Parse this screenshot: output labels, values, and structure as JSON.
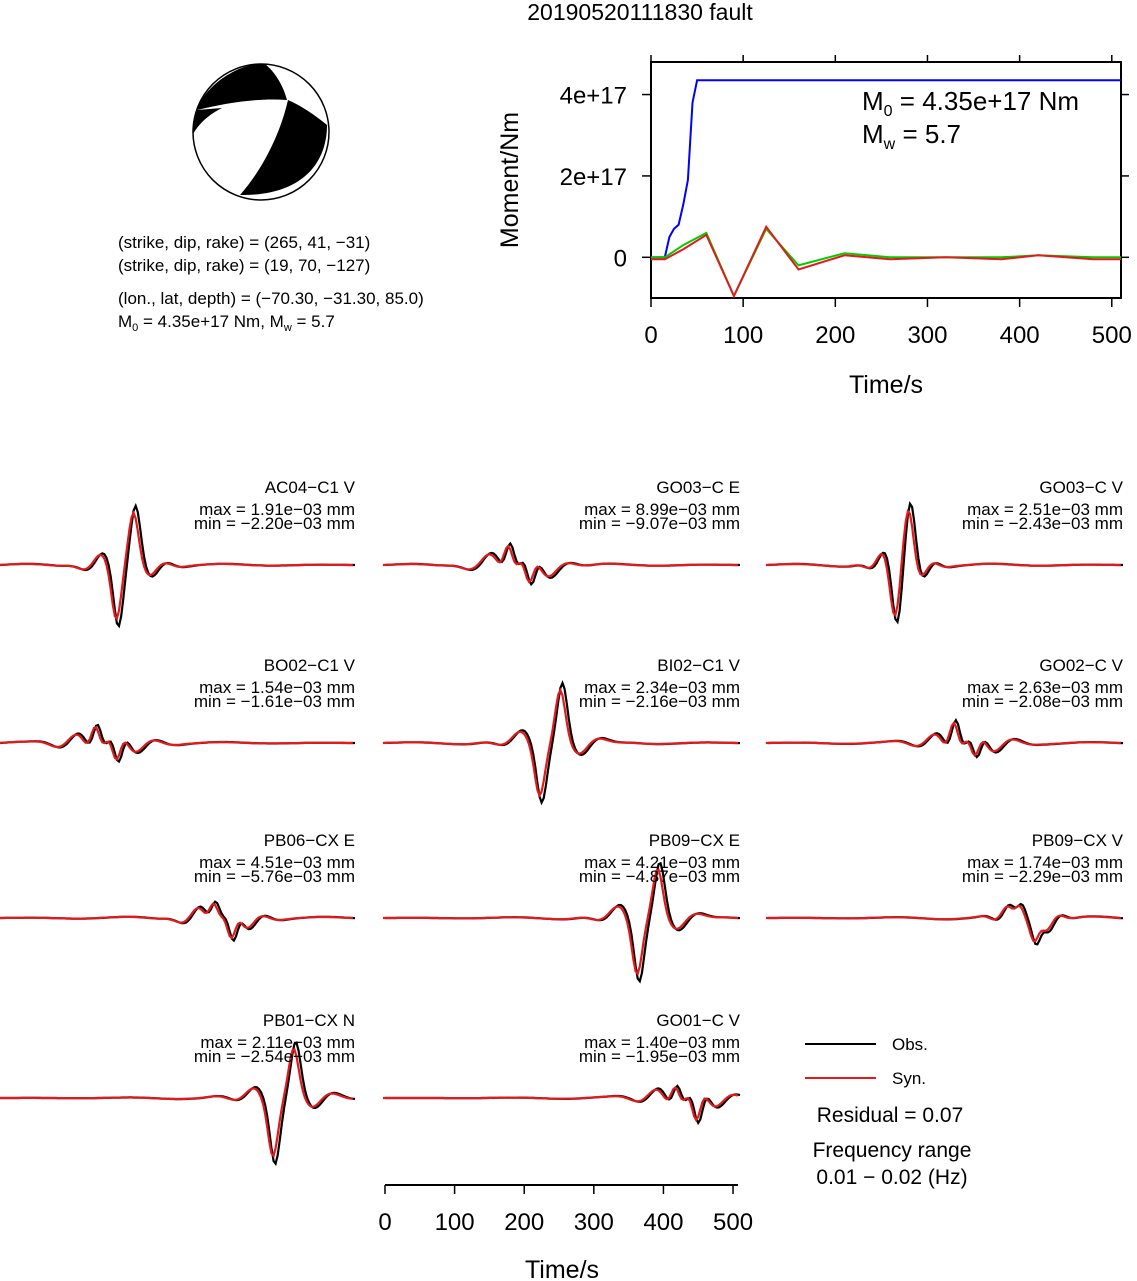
{
  "figure": {
    "title": "20190520111830 fault"
  },
  "mechanism": {
    "text_lines": [
      "(strike, dip, rake) = (265, 41, −31)",
      "(strike, dip, rake) = (19, 70, −127)",
      "(lon., lat, depth) = (−70.30, −31.30, 85.0)"
    ],
    "m0_prefix": "M",
    "m0_sub": "0",
    "m0_rest": " = 4.35e+17 Nm, M",
    "mw_sub": "w",
    "mw_rest": " = 5.7",
    "colors": {
      "compression": "#000000",
      "dilatation": "#ffffff"
    }
  },
  "moment_plot": {
    "ylabel": "Moment/Nm",
    "xlabel": "Time/s",
    "m0_label_prefix": "M",
    "m0_label_sub": "0",
    "m0_label_rest": " = 4.35e+17 Nm",
    "mw_label_prefix": "M",
    "mw_label_sub": "w",
    "mw_label_rest": " = 5.7"
  },
  "legend": {
    "obs": "Obs.",
    "syn": "Syn.",
    "obs_color": "#000000",
    "syn_color": "#e31a1c"
  },
  "residual_text": "Residual = 0.07",
  "frequency_title": "Frequency range",
  "frequency_value": "0.01 − 0.02 (Hz)",
  "waveform_axis": {
    "xlabel": "Time/s",
    "ticks": [
      "0",
      "100",
      "200",
      "300",
      "400",
      "500"
    ]
  },
  "chart_data": [
    {
      "type": "line",
      "xlabel": "Time/s",
      "ylabel": "Moment/Nm",
      "xlim": [
        0,
        510
      ],
      "ylim": [
        -1e+17,
        4.8e+17
      ],
      "x_ticks": [
        0,
        100,
        200,
        300,
        400,
        500
      ],
      "y_ticks": [
        0,
        2e+17,
        4e+17
      ],
      "y_tick_labels": [
        "0",
        "2e+17",
        "4e+17"
      ],
      "series": [
        {
          "color": "#0000ff",
          "x": [
            0,
            15,
            20,
            25,
            30,
            35,
            40,
            45,
            50,
            510
          ],
          "values": [
            0,
            0,
            5e+16,
            7e+16,
            8e+16,
            1.3e+17,
            1.9e+17,
            3.8e+17,
            4.35e+17,
            4.35e+17
          ]
        },
        {
          "color": "#00cc00",
          "x": [
            0,
            15,
            35,
            60,
            90,
            125,
            160,
            210,
            260,
            320,
            380,
            420,
            480,
            510
          ],
          "values": [
            0,
            0,
            3e+16,
            6e+16,
            -9.5e+16,
            7e+16,
            -2e+16,
            1e+16,
            0,
            0,
            0,
            5000000000000000.0,
            0,
            0
          ]
        },
        {
          "color": "#e31a1c",
          "x": [
            0,
            15,
            35,
            60,
            90,
            125,
            160,
            210,
            260,
            320,
            380,
            420,
            480,
            510
          ],
          "values": [
            -5000000000000000.0,
            -5000000000000000.0,
            2e+16,
            5.5e+16,
            -9.5e+16,
            7.5e+16,
            -3e+16,
            5000000000000000.0,
            -5000000000000000.0,
            0,
            -5000000000000000.0,
            5000000000000000.0,
            -5000000000000000.0,
            -5000000000000000.0
          ]
        }
      ],
      "grid": false,
      "legend_position": "top-right"
    },
    {
      "type": "line",
      "xlabel": "Time/s",
      "xlim": [
        0,
        510
      ],
      "x_ticks": [
        0,
        100,
        200,
        300,
        400,
        500
      ],
      "stations": [
        {
          "name": "AC04−C1 V",
          "max": "max = 1.91e−03 mm",
          "min": "min = −2.20e−03 mm",
          "obs_peak_x": 195,
          "obs_peak": 0.00191,
          "obs_trough_x": 170,
          "obs_trough": -0.0022
        },
        {
          "name": "GO03−C E",
          "max": "max = 8.99e−03 mm",
          "min": "min = −9.07e−03 mm",
          "obs_peak_x": 180,
          "obs_peak": 0.00899,
          "obs_trough_x": 210,
          "obs_trough": -0.00907
        },
        {
          "name": "GO03−C V",
          "max": "max = 2.51e−03 mm",
          "min": "min = −2.43e−03 mm",
          "obs_peak_x": 205,
          "obs_peak": 0.00251,
          "obs_trough_x": 185,
          "obs_trough": -0.00243
        },
        {
          "name": "BO02−C1 V",
          "max": "max = 1.54e−03 mm",
          "min": "min = −1.61e−03 mm",
          "obs_peak_x": 140,
          "obs_peak": 0.00154,
          "obs_trough_x": 170,
          "obs_trough": -0.00161
        },
        {
          "name": "BI02−C1 V",
          "max": "max = 2.34e−03 mm",
          "min": "min = −2.16e−03 mm",
          "obs_peak_x": 255,
          "obs_peak": 0.00234,
          "obs_trough_x": 225,
          "obs_trough": -0.00216
        },
        {
          "name": "GO02−C V",
          "max": "max = 2.63e−03 mm",
          "min": "min = −2.08e−03 mm",
          "obs_peak_x": 270,
          "obs_peak": 0.00263,
          "obs_trough_x": 300,
          "obs_trough": -0.00208
        },
        {
          "name": "PB06−CX E",
          "max": "max = 4.51e−03 mm",
          "min": "min = −5.76e−03 mm",
          "obs_peak_x": 310,
          "obs_peak": 0.00451,
          "obs_trough_x": 335,
          "obs_trough": -0.00576
        },
        {
          "name": "PB09−CX E",
          "max": "max = 4.21e−03 mm",
          "min": "min = −4.87e−03 mm",
          "obs_peak_x": 395,
          "obs_peak": 0.00421,
          "obs_trough_x": 365,
          "obs_trough": -0.00487
        },
        {
          "name": "PB09−CX V",
          "max": "max = 1.74e−03 mm",
          "min": "min = −2.29e−03 mm",
          "obs_peak_x": 365,
          "obs_peak": 0.00174,
          "obs_trough_x": 385,
          "obs_trough": -0.00229
        },
        {
          "name": "PB01−CX N",
          "max": "max = 2.11e−03 mm",
          "min": "min = −2.54e−03 mm",
          "obs_peak_x": 425,
          "obs_peak": 0.00211,
          "obs_trough_x": 395,
          "obs_trough": -0.00254
        },
        {
          "name": "GO01−C V",
          "max": "max = 1.40e−03 mm",
          "min": "min = −1.95e−03 mm",
          "obs_peak_x": 420,
          "obs_peak": 0.0014,
          "obs_trough_x": 450,
          "obs_trough": -0.00195
        }
      ],
      "series": [
        {
          "name": "Obs.",
          "color": "#000000"
        },
        {
          "name": "Syn.",
          "color": "#e31a1c"
        }
      ],
      "residual": 0.07,
      "frequency_range_hz": [
        0.01,
        0.02
      ]
    }
  ]
}
